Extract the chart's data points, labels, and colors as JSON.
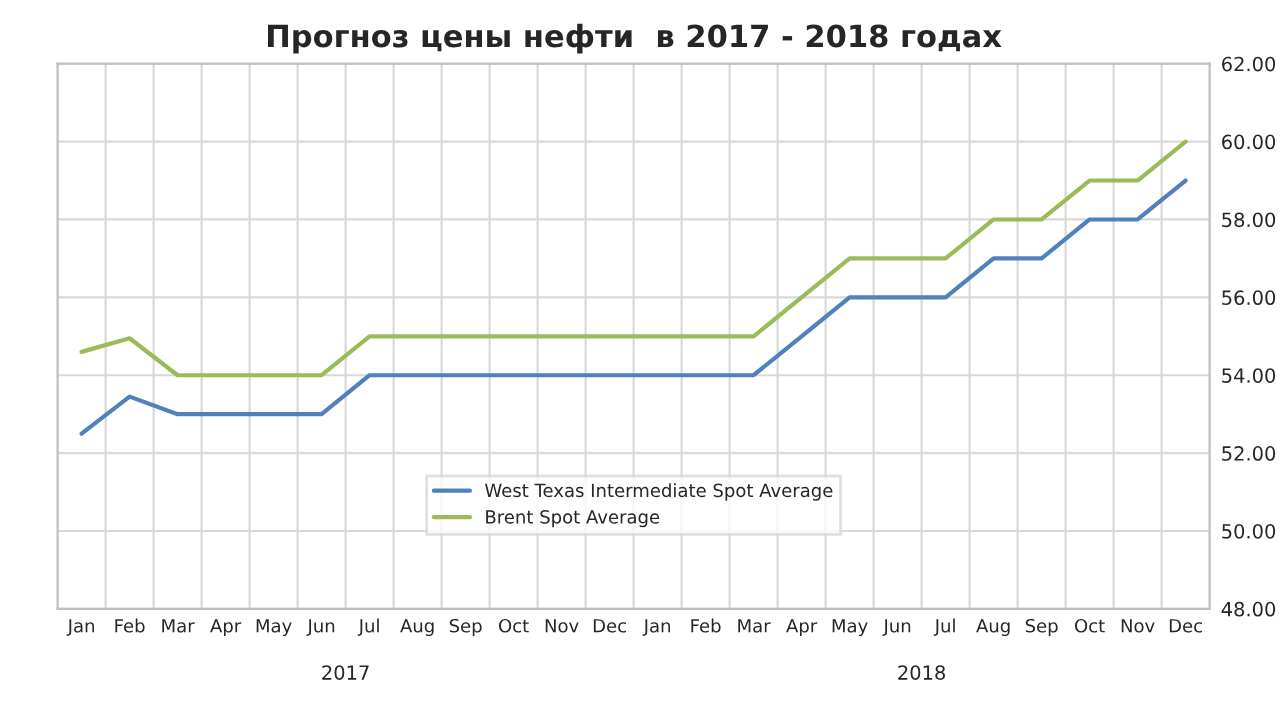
{
  "chart_data": {
    "type": "line",
    "title": "Прогноз цены нефти  в 2017 - 2018 годах",
    "categories": [
      "Jan",
      "Feb",
      "Mar",
      "Apr",
      "May",
      "Jun",
      "Jul",
      "Aug",
      "Sep",
      "Oct",
      "Nov",
      "Dec",
      "Jan",
      "Feb",
      "Mar",
      "Apr",
      "May",
      "Jun",
      "Jul",
      "Aug",
      "Sep",
      "Oct",
      "Nov",
      "Dec"
    ],
    "series": [
      {
        "name": "West Texas Intermediate Spot Average",
        "color": "#4f81bd",
        "values": [
          52.5,
          53.45,
          53,
          53,
          53,
          53,
          54,
          54,
          54,
          54,
          54,
          54,
          54,
          54,
          54,
          55,
          56,
          56,
          56,
          57,
          57,
          58,
          58,
          59
        ]
      },
      {
        "name": "Brent Spot Average",
        "color": "#9bbb59",
        "values": [
          54.6,
          54.95,
          54,
          54,
          54,
          54,
          55,
          55,
          55,
          55,
          55,
          55,
          55,
          55,
          55,
          56,
          57,
          57,
          57,
          58,
          58,
          59,
          59,
          60
        ]
      }
    ],
    "ylim": [
      48,
      62
    ],
    "yticks": [
      {
        "value": 48,
        "label": "48.00"
      },
      {
        "value": 50,
        "label": "50.00"
      },
      {
        "value": 52,
        "label": "52.00"
      },
      {
        "value": 54,
        "label": "54.00"
      },
      {
        "value": 56,
        "label": "56.00"
      },
      {
        "value": 58,
        "label": "58.00"
      },
      {
        "value": 60,
        "label": "60.00"
      },
      {
        "value": 62,
        "label": "62.00"
      }
    ],
    "annotations": [
      "2017",
      "2018"
    ],
    "grid": true,
    "legend": "bottom",
    "marker": "none",
    "line_style": "solid"
  }
}
